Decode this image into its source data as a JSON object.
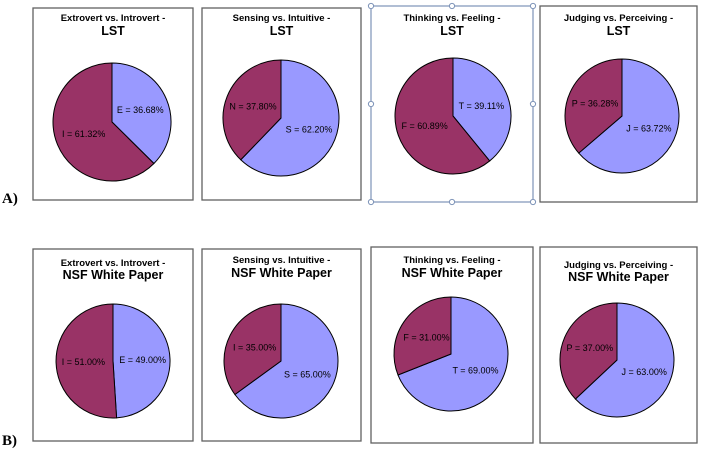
{
  "colors": {
    "major": "#9999ff",
    "minor": "#993366"
  },
  "rows": [
    {
      "label": "A)",
      "subtitle": "LST"
    },
    {
      "label": "B)",
      "subtitle": "NSF White Paper"
    }
  ],
  "chart_data": [
    {
      "type": "pie",
      "row": 0,
      "title": "Extrovert vs. Introvert -",
      "subtitle": "LST",
      "slices": [
        {
          "name": "E",
          "value": 36.68,
          "label": "E = 36.68%"
        },
        {
          "name": "I",
          "value": 61.32,
          "label": "I = 61.32%"
        }
      ]
    },
    {
      "type": "pie",
      "row": 0,
      "title": "Sensing vs. Intuitive -",
      "subtitle": "LST",
      "slices": [
        {
          "name": "S",
          "value": 62.2,
          "label": "S = 62.20%"
        },
        {
          "name": "N",
          "value": 37.8,
          "label": "N = 37.80%"
        }
      ]
    },
    {
      "type": "pie",
      "row": 0,
      "title": "Thinking vs. Feeling -",
      "subtitle": "LST",
      "selected": true,
      "slices": [
        {
          "name": "T",
          "value": 39.11,
          "label": "T = 39.11%"
        },
        {
          "name": "F",
          "value": 60.89,
          "label": "F = 60.89%"
        }
      ]
    },
    {
      "type": "pie",
      "row": 0,
      "title": "Judging vs. Perceiving -",
      "subtitle": "LST",
      "slices": [
        {
          "name": "J",
          "value": 63.72,
          "label": "J = 63.72%"
        },
        {
          "name": "P",
          "value": 36.28,
          "label": "P = 36.28%"
        }
      ]
    },
    {
      "type": "pie",
      "row": 1,
      "title": "Extrovert vs. Introvert -",
      "subtitle": "NSF White Paper",
      "slices": [
        {
          "name": "E",
          "value": 49.0,
          "label": "E = 49.00%"
        },
        {
          "name": "I",
          "value": 51.0,
          "label": "I = 51.00%"
        }
      ]
    },
    {
      "type": "pie",
      "row": 1,
      "title": "Sensing vs. Intuitive -",
      "subtitle": "NSF White Paper",
      "slices": [
        {
          "name": "S",
          "value": 65.0,
          "label": "S = 65.00%"
        },
        {
          "name": "I",
          "value": 35.0,
          "label": "I = 35.00%"
        }
      ]
    },
    {
      "type": "pie",
      "row": 1,
      "title": "Thinking vs. Feeling -",
      "subtitle": "NSF White Paper",
      "slices": [
        {
          "name": "T",
          "value": 69.0,
          "label": "T = 69.00%"
        },
        {
          "name": "F",
          "value": 31.0,
          "label": "F = 31.00%"
        }
      ]
    },
    {
      "type": "pie",
      "row": 1,
      "title": "Judging vs. Perceiving -",
      "subtitle": "NSF White Paper",
      "slices": [
        {
          "name": "J",
          "value": 63.0,
          "label": "J = 63.00%"
        },
        {
          "name": "P",
          "value": 37.0,
          "label": "P = 37.00%"
        }
      ]
    }
  ]
}
